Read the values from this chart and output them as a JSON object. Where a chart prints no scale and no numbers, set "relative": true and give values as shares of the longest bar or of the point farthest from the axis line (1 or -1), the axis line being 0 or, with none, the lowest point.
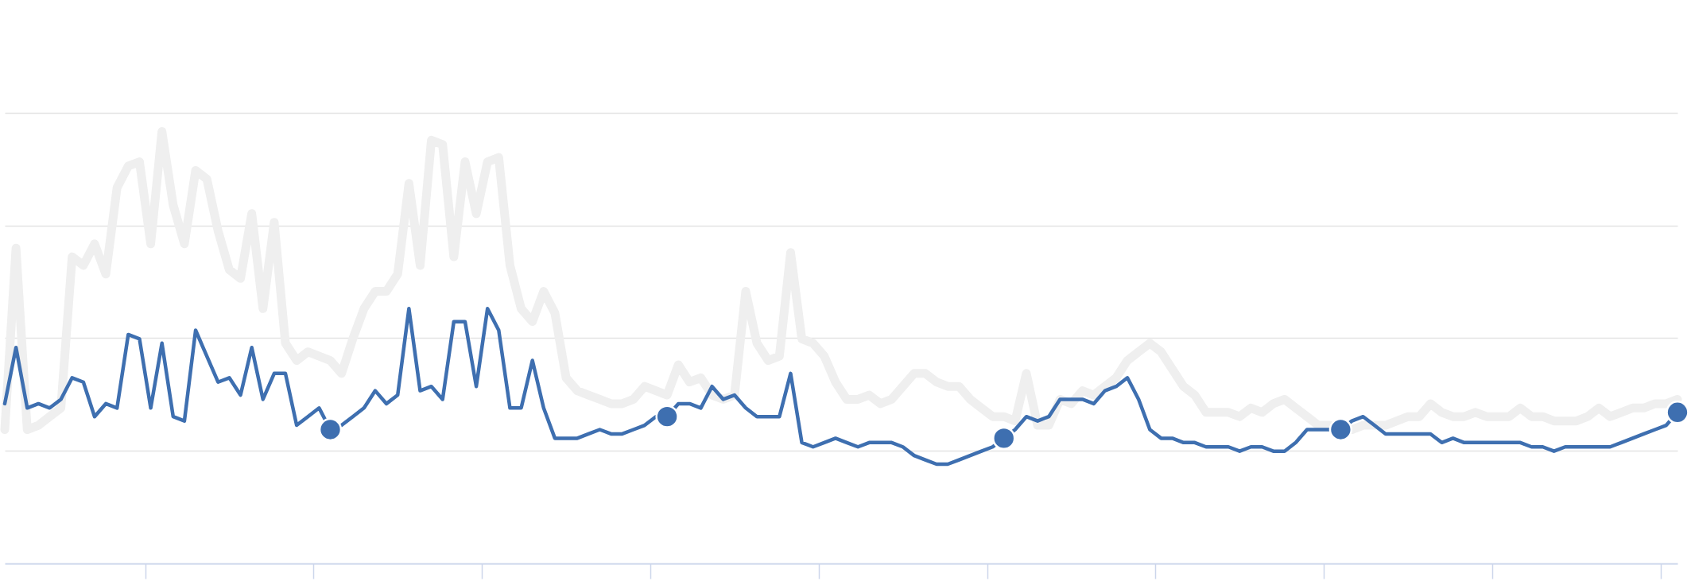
{
  "chart_data": {
    "type": "line",
    "relative": true,
    "grid": "y",
    "categories": [
      null,
      null,
      null,
      null,
      null,
      null,
      null,
      null,
      null,
      null,
      null,
      null,
      null,
      null,
      null,
      null,
      null,
      null,
      null,
      null,
      null,
      null,
      null,
      null,
      null,
      null,
      null,
      null,
      null,
      null,
      null,
      null,
      null,
      null,
      null,
      null,
      null,
      null,
      null,
      null,
      null,
      null,
      null,
      null,
      null,
      null,
      null,
      null,
      null,
      null,
      null,
      null,
      null,
      null,
      null,
      null,
      null,
      null,
      null,
      null,
      null,
      null,
      null,
      null,
      null,
      null,
      null,
      null,
      null,
      null,
      null,
      null,
      null,
      null,
      null,
      null,
      null,
      null,
      null,
      null,
      null,
      null,
      null,
      null,
      null,
      null,
      null,
      null,
      null,
      null,
      null,
      null,
      null,
      null,
      null,
      null,
      null,
      null,
      null,
      null,
      null,
      null,
      null,
      null,
      null,
      null,
      null,
      null,
      null,
      null,
      null,
      null,
      null,
      null,
      null,
      null,
      null,
      null,
      null,
      null,
      null,
      null,
      null,
      null,
      null,
      null,
      null,
      null,
      null,
      null,
      null,
      null,
      null,
      null,
      null,
      null,
      null,
      null,
      null,
      null,
      null,
      null,
      null,
      null,
      null,
      null,
      null,
      null,
      null,
      null
    ],
    "series": [
      {
        "color": "#efefef",
        "values": [
          0.31,
          0.73,
          0.31,
          0.32,
          0.34,
          0.36,
          0.71,
          0.69,
          0.74,
          0.67,
          0.87,
          0.92,
          0.93,
          0.74,
          1.0,
          0.83,
          0.74,
          0.91,
          0.89,
          0.77,
          0.68,
          0.66,
          0.81,
          0.59,
          0.79,
          0.51,
          0.47,
          0.49,
          0.48,
          0.47,
          0.44,
          0.52,
          0.59,
          0.63,
          0.63,
          0.67,
          0.88,
          0.69,
          0.98,
          0.97,
          0.71,
          0.93,
          0.81,
          0.93,
          0.94,
          0.69,
          0.59,
          0.56,
          0.63,
          0.58,
          0.43,
          0.4,
          0.39,
          0.38,
          0.37,
          0.37,
          0.38,
          0.41,
          0.4,
          0.39,
          0.46,
          0.42,
          0.43,
          0.39,
          0.38,
          0.39,
          0.63,
          0.51,
          0.47,
          0.48,
          0.72,
          0.52,
          0.51,
          0.48,
          0.42,
          0.38,
          0.38,
          0.39,
          0.37,
          0.38,
          0.41,
          0.44,
          0.44,
          0.42,
          0.41,
          0.41,
          0.38,
          0.36,
          0.34,
          0.34,
          0.33,
          0.44,
          0.32,
          0.32,
          0.38,
          0.37,
          0.4,
          0.39,
          0.41,
          0.43,
          0.47,
          0.49,
          0.51,
          0.49,
          0.45,
          0.41,
          0.39,
          0.35,
          0.35,
          0.35,
          0.34,
          0.36,
          0.35,
          0.37,
          0.38,
          0.36,
          0.34,
          0.32,
          0.32,
          0.31,
          0.31,
          0.32,
          0.32,
          0.32,
          0.33,
          0.34,
          0.34,
          0.37,
          0.35,
          0.34,
          0.34,
          0.35,
          0.34,
          0.34,
          0.34,
          0.36,
          0.34,
          0.34,
          0.33,
          0.33,
          0.33,
          0.34,
          0.36,
          0.34,
          0.35,
          0.36,
          0.36,
          0.37,
          0.37,
          0.38
        ]
      },
      {
        "color": "#3e6fb0",
        "values": [
          0.37,
          0.5,
          0.36,
          0.37,
          0.36,
          0.38,
          0.43,
          0.42,
          0.34,
          0.37,
          0.36,
          0.53,
          0.52,
          0.36,
          0.51,
          0.34,
          0.33,
          0.54,
          0.48,
          0.42,
          0.43,
          0.39,
          0.5,
          0.38,
          0.44,
          0.44,
          0.32,
          0.34,
          0.36,
          0.31,
          0.32,
          0.34,
          0.36,
          0.4,
          0.37,
          0.39,
          0.59,
          0.4,
          0.41,
          0.38,
          0.56,
          0.56,
          0.41,
          0.59,
          0.54,
          0.36,
          0.36,
          0.47,
          0.36,
          0.29,
          0.29,
          0.29,
          0.3,
          0.31,
          0.3,
          0.3,
          0.31,
          0.32,
          0.34,
          0.34,
          0.37,
          0.37,
          0.36,
          0.41,
          0.38,
          0.39,
          0.36,
          0.34,
          0.34,
          0.34,
          0.44,
          0.28,
          0.27,
          0.28,
          0.29,
          0.28,
          0.27,
          0.28,
          0.28,
          0.28,
          0.27,
          0.25,
          0.24,
          0.23,
          0.23,
          0.24,
          0.25,
          0.26,
          0.27,
          0.29,
          0.31,
          0.34,
          0.33,
          0.34,
          0.38,
          0.38,
          0.38,
          0.37,
          0.4,
          0.41,
          0.43,
          0.38,
          0.31,
          0.29,
          0.29,
          0.28,
          0.28,
          0.27,
          0.27,
          0.27,
          0.26,
          0.27,
          0.27,
          0.26,
          0.26,
          0.28,
          0.31,
          0.31,
          0.31,
          0.31,
          0.33,
          0.34,
          0.32,
          0.3,
          0.3,
          0.3,
          0.3,
          0.3,
          0.28,
          0.29,
          0.28,
          0.28,
          0.28,
          0.28,
          0.28,
          0.28,
          0.27,
          0.27,
          0.26,
          0.27,
          0.27,
          0.27,
          0.27,
          0.27,
          0.28,
          0.29,
          0.3,
          0.31,
          0.32,
          0.35
        ]
      }
    ]
  }
}
